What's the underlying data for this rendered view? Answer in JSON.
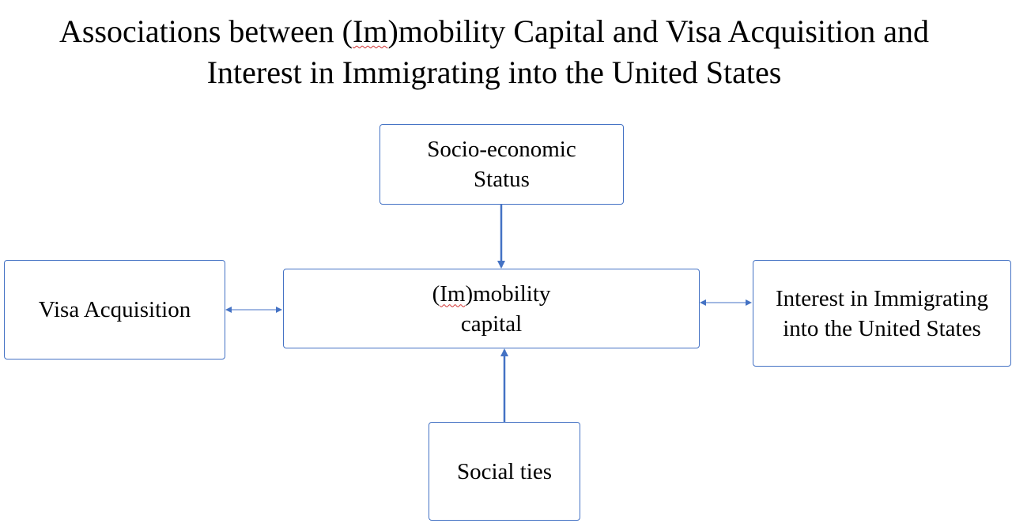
{
  "title": {
    "line1_pre": "Associations between (",
    "line1_spell": "Im",
    "line1_post": ")mobility Capital and Visa Acquisition and",
    "line2": "Interest in Immigrating into the United States"
  },
  "nodes": {
    "ses": {
      "line1": "Socio-economic",
      "line2": "Status"
    },
    "visa": {
      "line1": "Visa Acquisition"
    },
    "capital": {
      "line1_pre": "(",
      "line1_spell": "Im",
      "line1_post": ")mobility",
      "line2": "capital"
    },
    "interest": {
      "line1": "Interest in Immigrating",
      "line2": "into the United States"
    },
    "social": {
      "line1": "Social ties"
    }
  },
  "edges": [
    {
      "from": "Socio-economic Status",
      "to": "(Im)mobility capital",
      "direction": "one-way"
    },
    {
      "from": "Social ties",
      "to": "(Im)mobility capital",
      "direction": "one-way"
    },
    {
      "from": "Visa Acquisition",
      "to": "(Im)mobility capital",
      "direction": "two-way"
    },
    {
      "from": "(Im)mobility capital",
      "to": "Interest in Immigrating into the United States",
      "direction": "two-way"
    }
  ],
  "colors": {
    "box_border": "#4472c4",
    "arrow": "#4472c4",
    "text": "#000000",
    "spellcheck_underline": "#d03030"
  }
}
